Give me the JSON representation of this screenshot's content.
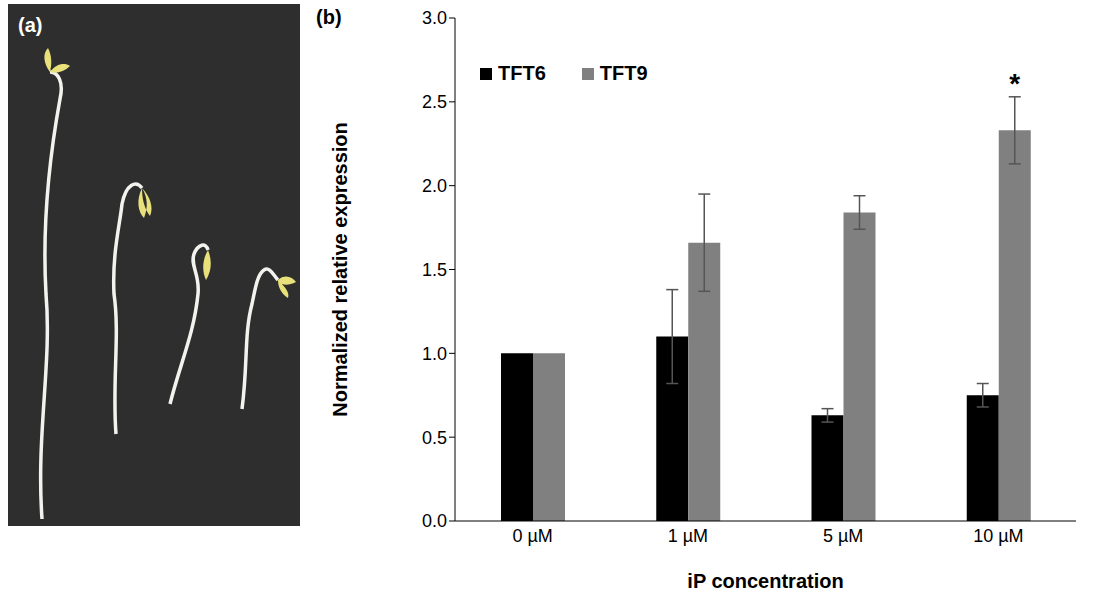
{
  "photo_panel": {
    "label": "(a)"
  },
  "chart_data": {
    "type": "bar",
    "panel_label": "(b)",
    "x_label": "iP concentration",
    "y_label": "Normalized relative expression",
    "categories": [
      "0 µM",
      "1 µM",
      "5 µM",
      "10 µM"
    ],
    "series": [
      {
        "name": "TFT6",
        "color": "#000000",
        "values": [
          1.0,
          1.1,
          0.63,
          0.75
        ],
        "errors": [
          0,
          0.28,
          0.04,
          0.07
        ]
      },
      {
        "name": "TFT9",
        "color": "#808080",
        "values": [
          1.0,
          1.66,
          1.84,
          2.33
        ],
        "errors": [
          0,
          0.29,
          0.1,
          0.2
        ]
      }
    ],
    "ylim": [
      0,
      3
    ],
    "yticks": [
      {
        "value": 0,
        "label": "0.0"
      },
      {
        "value": 0.5,
        "label": "0.5"
      },
      {
        "value": 1,
        "label": "1.0"
      },
      {
        "value": 1.5,
        "label": "1.5"
      },
      {
        "value": 2,
        "label": "2.0"
      },
      {
        "value": 2.5,
        "label": "2.5"
      },
      {
        "value": 3,
        "label": "3.0"
      }
    ],
    "annotations": [
      {
        "text": "*",
        "category": "10 µM",
        "series": "TFT9"
      }
    ],
    "legend": "top",
    "grid": false
  }
}
